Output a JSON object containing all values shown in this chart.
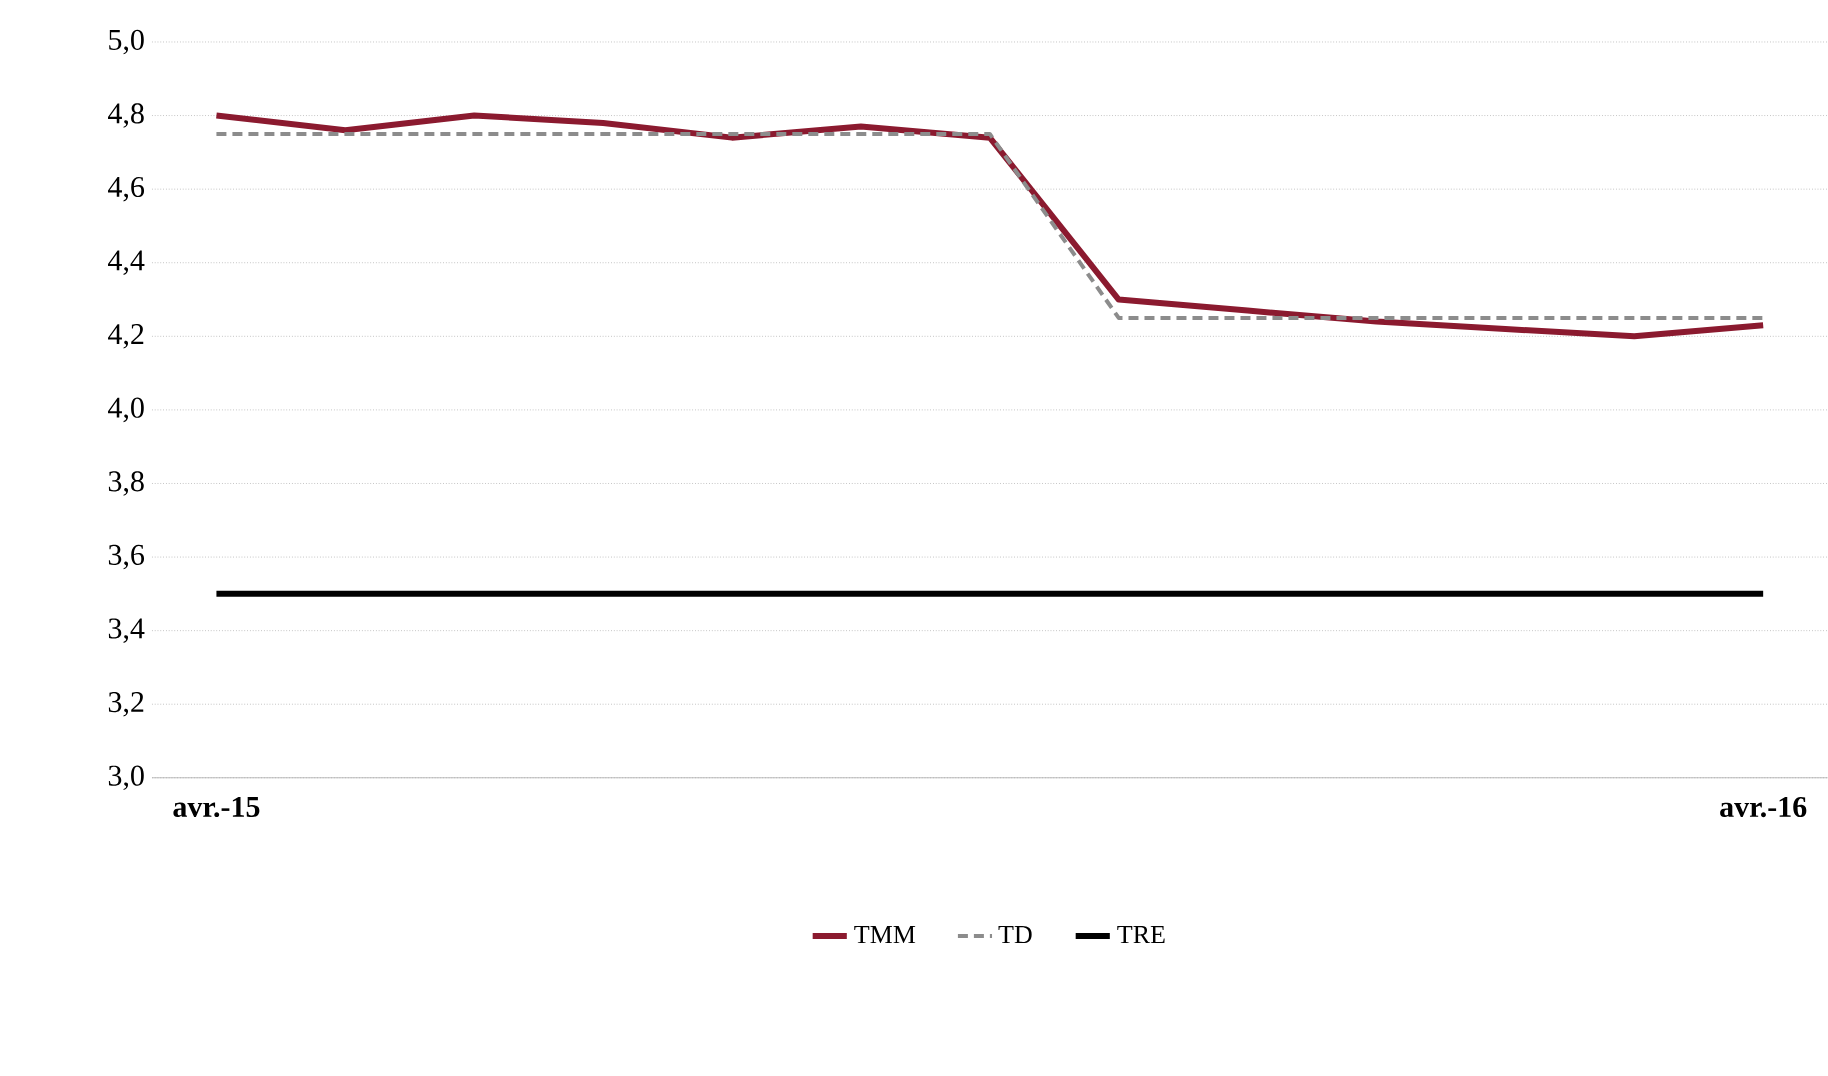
{
  "chart_data": {
    "type": "line",
    "categories": [
      "avr.-15",
      null,
      null,
      null,
      null,
      null,
      null,
      null,
      null,
      null,
      null,
      null,
      "avr.-16"
    ],
    "series": [
      {
        "name": "TMM",
        "color": "#8b1a2f",
        "line_style": "solid",
        "values": [
          4.8,
          4.76,
          4.8,
          4.78,
          4.74,
          4.77,
          4.74,
          4.3,
          4.27,
          4.24,
          4.22,
          4.2,
          4.23
        ]
      },
      {
        "name": "TD",
        "color": "#8c8c8c",
        "line_style": "dashed",
        "values": [
          4.75,
          4.75,
          4.75,
          4.75,
          4.75,
          4.75,
          4.75,
          4.25,
          4.25,
          4.25,
          4.25,
          4.25,
          4.25
        ]
      },
      {
        "name": "TRE",
        "color": "#000000",
        "line_style": "solid",
        "values": [
          3.5,
          3.5,
          3.5,
          3.5,
          3.5,
          3.5,
          3.5,
          3.5,
          3.5,
          3.5,
          3.5,
          3.5,
          3.5
        ]
      }
    ],
    "ylim": [
      3.0,
      5.0
    ],
    "yticks": [
      {
        "value": 3.0,
        "label": "3,0"
      },
      {
        "value": 3.2,
        "label": "3,2"
      },
      {
        "value": 3.4,
        "label": "3,4"
      },
      {
        "value": 3.6,
        "label": "3,6"
      },
      {
        "value": 3.8,
        "label": "3,8"
      },
      {
        "value": 4.0,
        "label": "4,0"
      },
      {
        "value": 4.2,
        "label": "4,2"
      },
      {
        "value": 4.4,
        "label": "4,4"
      },
      {
        "value": 4.6,
        "label": "4,6"
      },
      {
        "value": 4.8,
        "label": "4,8"
      },
      {
        "value": 5.0,
        "label": "5,0"
      }
    ],
    "grid": "y",
    "legend": "bottom"
  }
}
